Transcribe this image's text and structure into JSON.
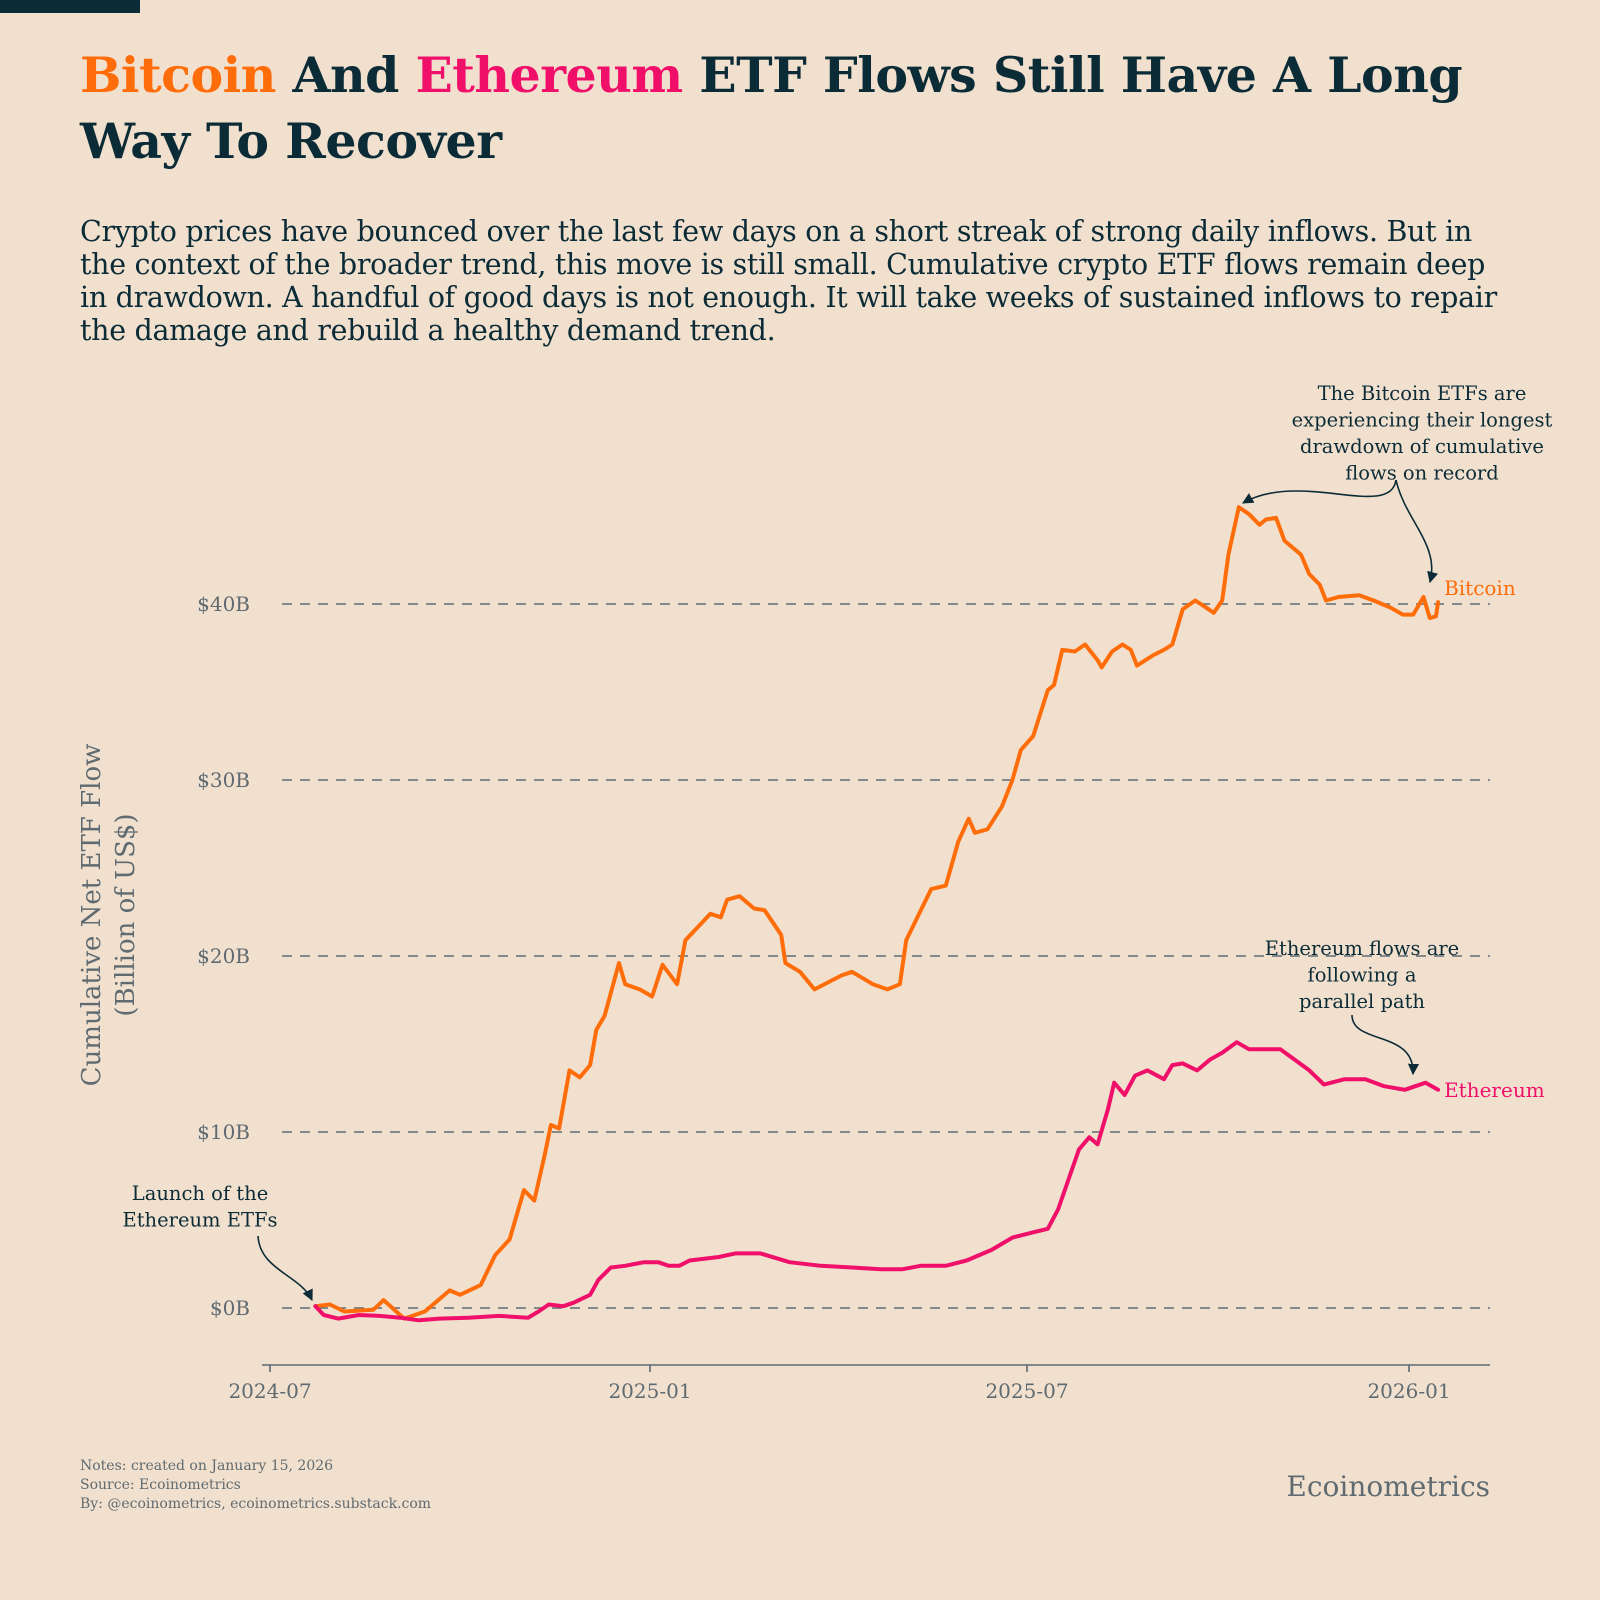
{
  "title": {
    "part1": "Bitcoin",
    "part2": " And ",
    "part3": "Ethereum",
    "part4": " ETF Flows Still Have A Long Way To Recover"
  },
  "subtitle": "Crypto prices have bounced over the last few days on a short streak of strong daily inflows. But in the context of the broader trend, this move is still small. Cumulative crypto ETF flows remain deep in drawdown. A handful of good days is not enough. It will take weeks of sustained inflows to repair the damage and rebuild a healthy demand trend.",
  "colors": {
    "background": "#f2e0cf",
    "text": "#0b2b36",
    "bitcoin": "#ff6d0a",
    "ethereum": "#f0106a",
    "axis": "#5f6b70"
  },
  "footer": {
    "notes": "Notes: created on January 15, 2026",
    "source": "Source: Ecoinometrics",
    "by": "By: @ecoinometrics, ecoinometrics.substack.com",
    "brand": "Ecoinometrics"
  },
  "chart_data": {
    "type": "line",
    "ylabel": [
      "Cumulative Net ETF Flow",
      "(Billion of US$)"
    ],
    "xlabel": "",
    "ylim": [
      -3,
      47
    ],
    "yticks": [
      0,
      10,
      20,
      30,
      40
    ],
    "ytick_labels": [
      "$0B",
      "$10B",
      "$20B",
      "$30B",
      "$40B"
    ],
    "xticks": [
      "2024-07-01",
      "2025-01-01",
      "2025-07-01",
      "2026-01-01"
    ],
    "xtick_labels": [
      "2024-07",
      "2025-01",
      "2025-07",
      "2026-01"
    ],
    "grid": "horizontal dashed",
    "legend": "direct labels at line ends",
    "annotations": [
      {
        "id": "btc",
        "text": [
          "The Bitcoin ETFs are",
          "experiencing their longest",
          "drawdown of  cumulative",
          "flows on record"
        ]
      },
      {
        "id": "eth",
        "text": [
          "Ethereum flows are",
          "following a",
          "parallel path"
        ]
      },
      {
        "id": "launch",
        "text": [
          "Launch of the",
          "Ethereum ETFs"
        ]
      }
    ],
    "series": [
      {
        "name": "Bitcoin",
        "color": "#ff6d0a",
        "points": [
          [
            "2024-07-23",
            0.1
          ],
          [
            "2024-07-30",
            0.2
          ],
          [
            "2024-08-06",
            -0.2
          ],
          [
            "2024-08-20",
            -0.1
          ],
          [
            "2024-08-25",
            0.45
          ],
          [
            "2024-09-04",
            -0.6
          ],
          [
            "2024-09-14",
            -0.2
          ],
          [
            "2024-09-26",
            1.0
          ],
          [
            "2024-10-01",
            0.75
          ],
          [
            "2024-10-11",
            1.3
          ],
          [
            "2024-10-18",
            3.0
          ],
          [
            "2024-10-25",
            3.9
          ],
          [
            "2024-11-01",
            6.7
          ],
          [
            "2024-11-06",
            6.1
          ],
          [
            "2024-11-11",
            8.7
          ],
          [
            "2024-11-14",
            10.4
          ],
          [
            "2024-11-18",
            10.2
          ],
          [
            "2024-11-23",
            13.5
          ],
          [
            "2024-11-28",
            13.1
          ],
          [
            "2024-12-03",
            13.8
          ],
          [
            "2024-12-06",
            15.8
          ],
          [
            "2024-12-10",
            16.6
          ],
          [
            "2024-12-17",
            19.6
          ],
          [
            "2024-12-20",
            18.4
          ],
          [
            "2024-12-27",
            18.1
          ],
          [
            "2025-01-02",
            17.7
          ],
          [
            "2025-01-07",
            19.5
          ],
          [
            "2025-01-14",
            18.4
          ],
          [
            "2025-01-18",
            20.9
          ],
          [
            "2025-01-30",
            22.4
          ],
          [
            "2025-02-04",
            22.2
          ],
          [
            "2025-02-07",
            23.2
          ],
          [
            "2025-02-13",
            23.4
          ],
          [
            "2025-02-20",
            22.7
          ],
          [
            "2025-02-25",
            22.6
          ],
          [
            "2025-03-05",
            21.2
          ],
          [
            "2025-03-07",
            19.6
          ],
          [
            "2025-03-14",
            19.1
          ],
          [
            "2025-03-21",
            18.1
          ],
          [
            "2025-04-03",
            18.9
          ],
          [
            "2025-04-08",
            19.1
          ],
          [
            "2025-04-18",
            18.4
          ],
          [
            "2025-04-25",
            18.1
          ],
          [
            "2025-05-01",
            18.4
          ],
          [
            "2025-05-04",
            20.9
          ],
          [
            "2025-05-11",
            22.6
          ],
          [
            "2025-05-16",
            23.8
          ],
          [
            "2025-05-23",
            24.0
          ],
          [
            "2025-05-29",
            26.5
          ],
          [
            "2025-06-03",
            27.8
          ],
          [
            "2025-06-06",
            27.0
          ],
          [
            "2025-06-12",
            27.2
          ],
          [
            "2025-06-19",
            28.5
          ],
          [
            "2025-06-24",
            30.0
          ],
          [
            "2025-06-28",
            31.7
          ],
          [
            "2025-07-04",
            32.5
          ],
          [
            "2025-07-11",
            35.1
          ],
          [
            "2025-07-14",
            35.4
          ],
          [
            "2025-07-18",
            37.4
          ],
          [
            "2025-07-24",
            37.3
          ],
          [
            "2025-07-29",
            37.7
          ],
          [
            "2025-08-04",
            36.8
          ],
          [
            "2025-08-06",
            36.4
          ],
          [
            "2025-08-11",
            37.3
          ],
          [
            "2025-08-16",
            37.7
          ],
          [
            "2025-08-20",
            37.4
          ],
          [
            "2025-08-23",
            36.5
          ],
          [
            "2025-08-31",
            37.1
          ],
          [
            "2025-09-05",
            37.4
          ],
          [
            "2025-09-09",
            37.7
          ],
          [
            "2025-09-14",
            39.7
          ],
          [
            "2025-09-20",
            40.2
          ],
          [
            "2025-09-24",
            39.9
          ],
          [
            "2025-09-29",
            39.5
          ],
          [
            "2025-10-03",
            40.2
          ],
          [
            "2025-10-06",
            42.8
          ],
          [
            "2025-10-11",
            45.5
          ],
          [
            "2025-10-16",
            45.1
          ],
          [
            "2025-10-21",
            44.5
          ],
          [
            "2025-10-24",
            44.8
          ],
          [
            "2025-10-29",
            44.9
          ],
          [
            "2025-11-02",
            43.6
          ],
          [
            "2025-11-07",
            43.1
          ],
          [
            "2025-11-10",
            42.8
          ],
          [
            "2025-11-14",
            41.7
          ],
          [
            "2025-11-19",
            41.1
          ],
          [
            "2025-11-22",
            40.2
          ],
          [
            "2025-11-28",
            40.4
          ],
          [
            "2025-12-08",
            40.5
          ],
          [
            "2025-12-15",
            40.2
          ],
          [
            "2025-12-23",
            39.8
          ],
          [
            "2025-12-29",
            39.4
          ],
          [
            "2026-01-03",
            39.4
          ],
          [
            "2026-01-08",
            40.4
          ],
          [
            "2026-01-11",
            39.2
          ],
          [
            "2026-01-14",
            39.3
          ],
          [
            "2026-01-15",
            40.1
          ]
        ]
      },
      {
        "name": "Ethereum",
        "color": "#f0106a",
        "points": [
          [
            "2024-07-23",
            0.1
          ],
          [
            "2024-07-27",
            -0.4
          ],
          [
            "2024-08-03",
            -0.6
          ],
          [
            "2024-08-13",
            -0.4
          ],
          [
            "2024-08-23",
            -0.45
          ],
          [
            "2024-09-02",
            -0.55
          ],
          [
            "2024-09-11",
            -0.7
          ],
          [
            "2024-09-21",
            -0.6
          ],
          [
            "2024-10-05",
            -0.55
          ],
          [
            "2024-10-20",
            -0.45
          ],
          [
            "2024-11-03",
            -0.55
          ],
          [
            "2024-11-08",
            -0.2
          ],
          [
            "2024-11-13",
            0.2
          ],
          [
            "2024-11-20",
            0.1
          ],
          [
            "2024-11-25",
            0.3
          ],
          [
            "2024-12-03",
            0.75
          ],
          [
            "2024-12-07",
            1.6
          ],
          [
            "2024-12-13",
            2.3
          ],
          [
            "2024-12-20",
            2.4
          ],
          [
            "2024-12-29",
            2.6
          ],
          [
            "2025-01-05",
            2.6
          ],
          [
            "2025-01-10",
            2.4
          ],
          [
            "2025-01-15",
            2.4
          ],
          [
            "2025-01-20",
            2.7
          ],
          [
            "2025-02-03",
            2.9
          ],
          [
            "2025-02-11",
            3.1
          ],
          [
            "2025-02-23",
            3.1
          ],
          [
            "2025-03-09",
            2.6
          ],
          [
            "2025-03-24",
            2.4
          ],
          [
            "2025-04-08",
            2.3
          ],
          [
            "2025-04-22",
            2.2
          ],
          [
            "2025-05-02",
            2.2
          ],
          [
            "2025-05-11",
            2.4
          ],
          [
            "2025-05-23",
            2.4
          ],
          [
            "2025-06-02",
            2.7
          ],
          [
            "2025-06-14",
            3.3
          ],
          [
            "2025-06-24",
            4.0
          ],
          [
            "2025-07-04",
            4.3
          ],
          [
            "2025-07-11",
            4.5
          ],
          [
            "2025-07-16",
            5.6
          ],
          [
            "2025-07-21",
            7.3
          ],
          [
            "2025-07-26",
            9.0
          ],
          [
            "2025-07-31",
            9.7
          ],
          [
            "2025-08-04",
            9.3
          ],
          [
            "2025-08-09",
            11.3
          ],
          [
            "2025-08-12",
            12.8
          ],
          [
            "2025-08-17",
            12.1
          ],
          [
            "2025-08-22",
            13.2
          ],
          [
            "2025-08-28",
            13.5
          ],
          [
            "2025-09-05",
            13.0
          ],
          [
            "2025-09-09",
            13.8
          ],
          [
            "2025-09-14",
            13.9
          ],
          [
            "2025-09-21",
            13.5
          ],
          [
            "2025-09-27",
            14.1
          ],
          [
            "2025-10-03",
            14.5
          ],
          [
            "2025-10-10",
            15.1
          ],
          [
            "2025-10-16",
            14.7
          ],
          [
            "2025-10-23",
            14.7
          ],
          [
            "2025-10-31",
            14.7
          ],
          [
            "2025-11-07",
            14.1
          ],
          [
            "2025-11-14",
            13.5
          ],
          [
            "2025-11-21",
            12.7
          ],
          [
            "2025-12-01",
            13.0
          ],
          [
            "2025-12-11",
            13.0
          ],
          [
            "2025-12-20",
            12.6
          ],
          [
            "2025-12-30",
            12.4
          ],
          [
            "2026-01-09",
            12.8
          ],
          [
            "2026-01-15",
            12.4
          ]
        ]
      }
    ]
  }
}
